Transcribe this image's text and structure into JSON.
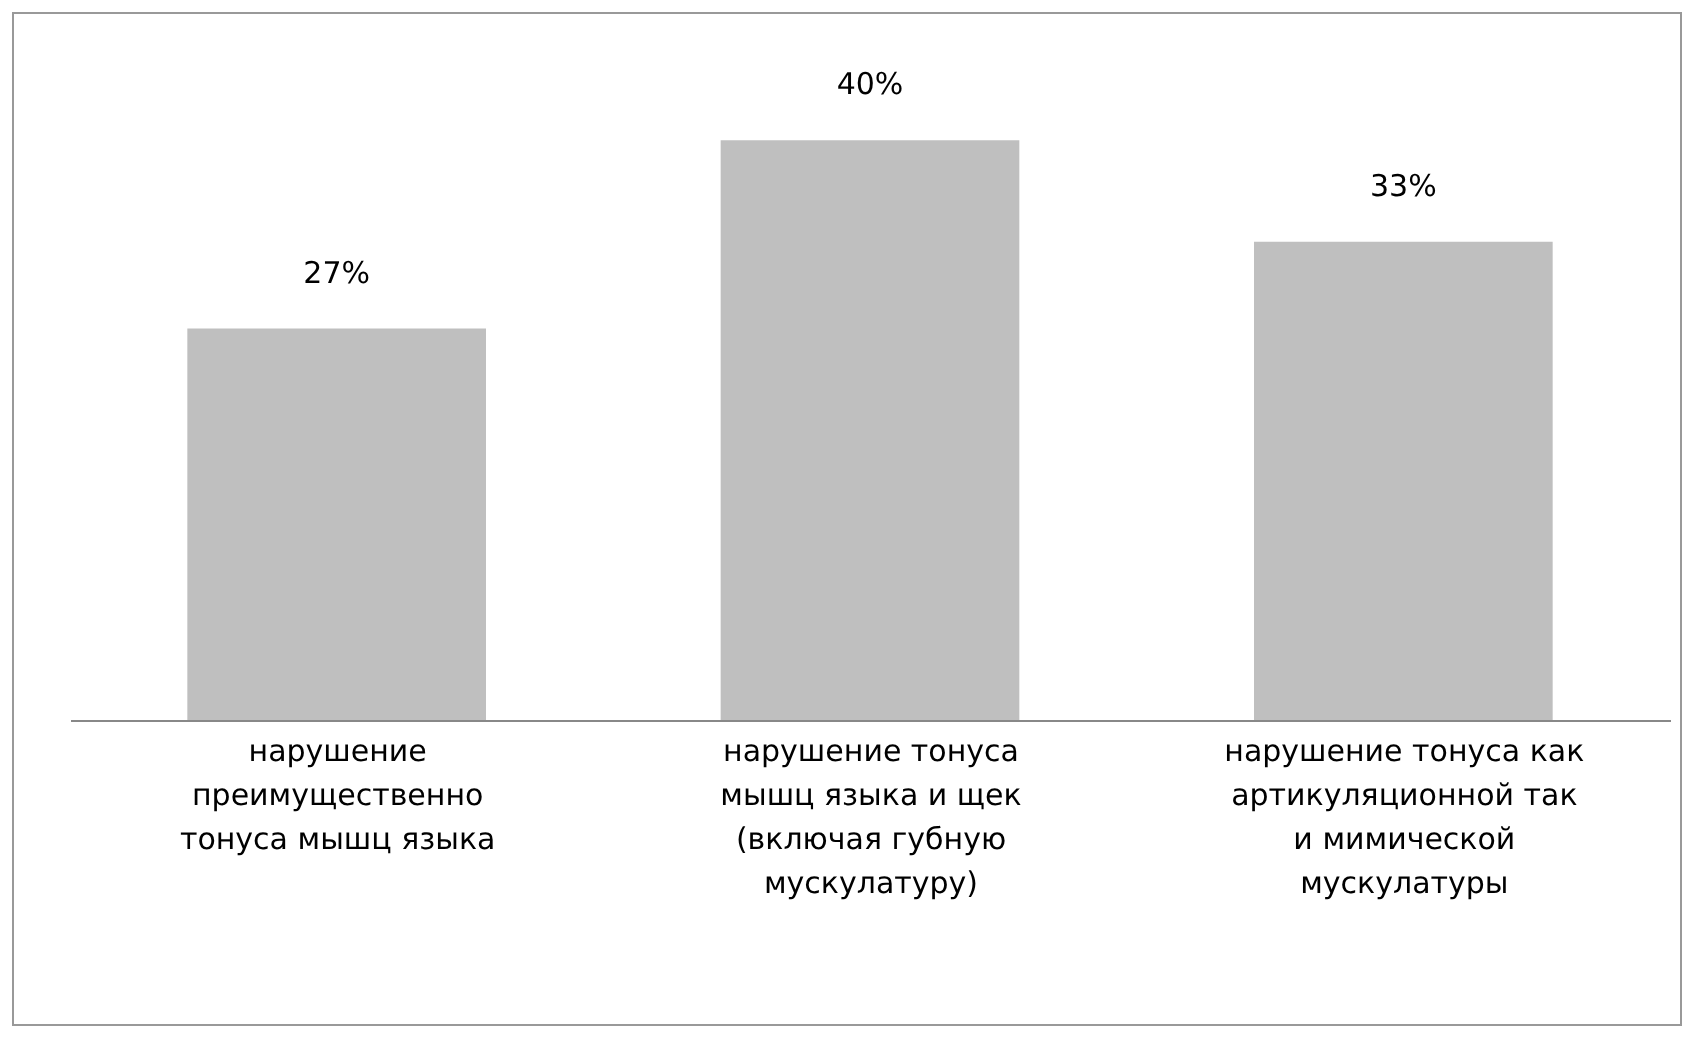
{
  "chart_data": {
    "type": "bar",
    "categories": [
      "нарушение преимущественно тонуса мышц языка",
      "нарушение тонуса мышц языка и щек (включая губную мускулатуру)",
      "нарушение тонуса как артикуляционной так и мимической мускулатуры"
    ],
    "values": [
      27,
      40,
      33
    ],
    "color": "#bfbfbf",
    "value_labels": [
      "27%",
      "40%",
      "33%"
    ],
    "grid": false
  }
}
